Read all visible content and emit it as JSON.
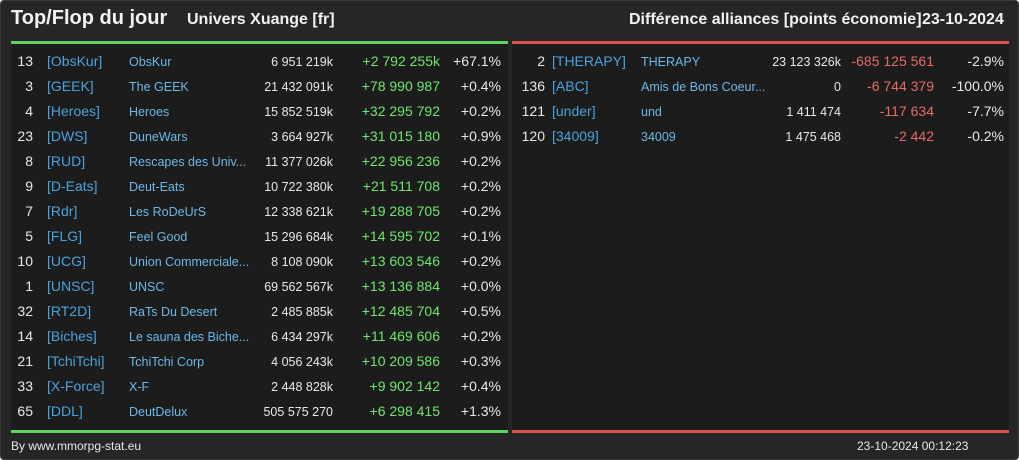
{
  "header": {
    "title": "Top/Flop du jour",
    "universe": "Univers Xuange [fr]",
    "subject": "Différence alliances [points économie]",
    "date": "23-10-2024"
  },
  "colors": {
    "background": "#262626",
    "panel": "#1c1c1c",
    "top_accent": "#5fd35f",
    "flop_accent": "#d9534f",
    "tag": "#4aa3df",
    "positive": "#6ee66e",
    "negative": "#e86a66"
  },
  "top": [
    {
      "rank": "13",
      "tag": "[ObsKur]",
      "name": "ObsKur",
      "points": "6 951 219k",
      "diff": "+2 792 255k",
      "pct": "+67.1%"
    },
    {
      "rank": "3",
      "tag": "[GEEK]",
      "name": "The GEEK",
      "points": "21 432 091k",
      "diff": "+78 990 987",
      "pct": "+0.4%"
    },
    {
      "rank": "4",
      "tag": "[Heroes]",
      "name": "Heroes",
      "points": "15 852 519k",
      "diff": "+32 295 792",
      "pct": "+0.2%"
    },
    {
      "rank": "23",
      "tag": "[DWS]",
      "name": "DuneWars",
      "points": "3 664 927k",
      "diff": "+31 015 180",
      "pct": "+0.9%"
    },
    {
      "rank": "8",
      "tag": "[RUD]",
      "name": "Rescapes des Univ...",
      "points": "11 377 026k",
      "diff": "+22 956 236",
      "pct": "+0.2%"
    },
    {
      "rank": "9",
      "tag": "[D-Eats]",
      "name": "Deut-Eats",
      "points": "10 722 380k",
      "diff": "+21 511 708",
      "pct": "+0.2%"
    },
    {
      "rank": "7",
      "tag": "[Rdr]",
      "name": "Les RoDeUrS",
      "points": "12 338 621k",
      "diff": "+19 288 705",
      "pct": "+0.2%"
    },
    {
      "rank": "5",
      "tag": "[FLG]",
      "name": "Feel Good",
      "points": "15 296 684k",
      "diff": "+14 595 702",
      "pct": "+0.1%"
    },
    {
      "rank": "10",
      "tag": "[UCG]",
      "name": "Union Commerciale...",
      "points": "8 108 090k",
      "diff": "+13 603 546",
      "pct": "+0.2%"
    },
    {
      "rank": "1",
      "tag": "[UNSC]",
      "name": "UNSC",
      "points": "69 562 567k",
      "diff": "+13 136 884",
      "pct": "+0.0%"
    },
    {
      "rank": "32",
      "tag": "[RT2D]",
      "name": "RaTs Du Desert",
      "points": "2 485 885k",
      "diff": "+12 485 704",
      "pct": "+0.5%"
    },
    {
      "rank": "14",
      "tag": "[Biches]",
      "name": "Le sauna des Biche...",
      "points": "6 434 297k",
      "diff": "+11 469 606",
      "pct": "+0.2%"
    },
    {
      "rank": "21",
      "tag": "[TchiTchi]",
      "name": "TchiTchi Corp",
      "points": "4 056 243k",
      "diff": "+10 209 586",
      "pct": "+0.3%"
    },
    {
      "rank": "33",
      "tag": "[X-Force]",
      "name": "X-F",
      "points": "2 448 828k",
      "diff": "+9 902 142",
      "pct": "+0.4%"
    },
    {
      "rank": "65",
      "tag": "[DDL]",
      "name": "DeutDelux",
      "points": "505 575 270",
      "diff": "+6 298 415",
      "pct": "+1.3%"
    }
  ],
  "flop": [
    {
      "rank": "2",
      "tag": "[THERAPY]",
      "name": "THERAPY",
      "points": "23 123 326k",
      "diff": "-685 125 561",
      "pct": "-2.9%"
    },
    {
      "rank": "136",
      "tag": "[ABC]",
      "name": "Amis de Bons Coeur...",
      "points": "0",
      "diff": "-6 744 379",
      "pct": "-100.0%"
    },
    {
      "rank": "121",
      "tag": "[under]",
      "name": "und",
      "points": "1 411 474",
      "diff": "-117 634",
      "pct": "-7.7%"
    },
    {
      "rank": "120",
      "tag": "[34009]",
      "name": "34009",
      "points": "1 475 468",
      "diff": "-2 442",
      "pct": "-0.2%"
    }
  ],
  "footer": {
    "source": "By www.mmorpg-stat.eu",
    "timestamp": "23-10-2024 00:12:23"
  }
}
